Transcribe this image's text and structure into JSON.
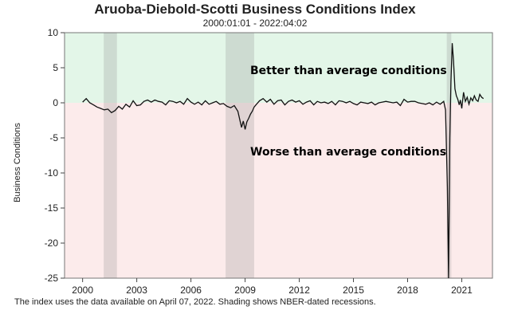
{
  "chart_data": {
    "type": "line",
    "title": "Aruoba-Diebold-Scotti Business Conditions Index",
    "subtitle": "2000:01:01 - 2022:04:02",
    "ylabel": "Business Conditions",
    "xlabel": "",
    "ylim": [
      -25,
      10
    ],
    "xlim": [
      1999.0,
      2022.7
    ],
    "y_ticks": [
      "10",
      "5",
      "0",
      "-5",
      "-10",
      "-15",
      "-20",
      "-25"
    ],
    "x_ticks": [
      "2000",
      "2003",
      "2006",
      "2009",
      "2012",
      "2015",
      "2018",
      "2021"
    ],
    "annotations": {
      "better": "Better than average conditions",
      "worse": "Worse than average conditions"
    },
    "note": "The index uses the data available on April 07, 2022. Shading shows NBER-dated recessions.",
    "recessions": [
      [
        2001.17,
        2001.9
      ],
      [
        2007.92,
        2009.5
      ],
      [
        2020.17,
        2020.42
      ]
    ],
    "colors": {
      "above_zero_fill": "#e3f6e8",
      "below_zero_fill": "#fcebeb",
      "recession_shade": "#8a8a8a",
      "line": "#111111"
    },
    "series": [
      {
        "values": [
          [
            2000.0,
            0.1
          ],
          [
            2000.2,
            0.6
          ],
          [
            2000.4,
            0.0
          ],
          [
            2000.6,
            -0.3
          ],
          [
            2000.8,
            -0.6
          ],
          [
            2001.0,
            -0.8
          ],
          [
            2001.2,
            -1.0
          ],
          [
            2001.4,
            -0.9
          ],
          [
            2001.6,
            -1.4
          ],
          [
            2001.8,
            -1.1
          ],
          [
            2002.0,
            -0.5
          ],
          [
            2002.2,
            -0.9
          ],
          [
            2002.4,
            -0.2
          ],
          [
            2002.6,
            -0.6
          ],
          [
            2002.8,
            0.3
          ],
          [
            2003.0,
            -0.4
          ],
          [
            2003.2,
            -0.3
          ],
          [
            2003.4,
            0.2
          ],
          [
            2003.6,
            0.4
          ],
          [
            2003.8,
            0.1
          ],
          [
            2004.0,
            0.4
          ],
          [
            2004.2,
            0.2
          ],
          [
            2004.4,
            0.1
          ],
          [
            2004.6,
            -0.3
          ],
          [
            2004.8,
            0.3
          ],
          [
            2005.0,
            0.2
          ],
          [
            2005.2,
            0.0
          ],
          [
            2005.4,
            0.2
          ],
          [
            2005.6,
            -0.2
          ],
          [
            2005.8,
            0.6
          ],
          [
            2006.0,
            0.1
          ],
          [
            2006.2,
            -0.2
          ],
          [
            2006.4,
            0.1
          ],
          [
            2006.6,
            -0.3
          ],
          [
            2006.8,
            0.3
          ],
          [
            2007.0,
            -0.2
          ],
          [
            2007.2,
            0.0
          ],
          [
            2007.4,
            0.2
          ],
          [
            2007.6,
            -0.2
          ],
          [
            2007.8,
            -0.1
          ],
          [
            2008.0,
            -0.5
          ],
          [
            2008.2,
            -0.7
          ],
          [
            2008.4,
            -0.4
          ],
          [
            2008.6,
            -1.2
          ],
          [
            2008.8,
            -3.5
          ],
          [
            2008.9,
            -2.6
          ],
          [
            2009.0,
            -3.8
          ],
          [
            2009.1,
            -2.7
          ],
          [
            2009.2,
            -2.2
          ],
          [
            2009.3,
            -1.6
          ],
          [
            2009.4,
            -1.2
          ],
          [
            2009.5,
            -0.6
          ],
          [
            2009.6,
            -0.3
          ],
          [
            2009.8,
            0.3
          ],
          [
            2010.0,
            0.6
          ],
          [
            2010.2,
            0.1
          ],
          [
            2010.4,
            0.5
          ],
          [
            2010.6,
            -0.2
          ],
          [
            2010.8,
            0.3
          ],
          [
            2011.0,
            0.4
          ],
          [
            2011.2,
            -0.3
          ],
          [
            2011.4,
            0.2
          ],
          [
            2011.6,
            0.4
          ],
          [
            2011.8,
            0.1
          ],
          [
            2012.0,
            0.3
          ],
          [
            2012.2,
            -0.2
          ],
          [
            2012.4,
            0.1
          ],
          [
            2012.6,
            0.3
          ],
          [
            2012.8,
            -0.3
          ],
          [
            2013.0,
            0.2
          ],
          [
            2013.2,
            0.0
          ],
          [
            2013.4,
            0.1
          ],
          [
            2013.6,
            -0.1
          ],
          [
            2013.8,
            0.2
          ],
          [
            2014.0,
            -0.3
          ],
          [
            2014.2,
            0.3
          ],
          [
            2014.4,
            0.2
          ],
          [
            2014.6,
            0.0
          ],
          [
            2014.8,
            0.2
          ],
          [
            2015.0,
            -0.1
          ],
          [
            2015.2,
            -0.3
          ],
          [
            2015.4,
            0.1
          ],
          [
            2015.6,
            0.0
          ],
          [
            2015.8,
            -0.1
          ],
          [
            2016.0,
            0.1
          ],
          [
            2016.2,
            -0.3
          ],
          [
            2016.4,
            0.0
          ],
          [
            2016.6,
            0.1
          ],
          [
            2016.8,
            0.2
          ],
          [
            2017.0,
            0.1
          ],
          [
            2017.2,
            0.0
          ],
          [
            2017.4,
            0.1
          ],
          [
            2017.6,
            -0.4
          ],
          [
            2017.8,
            0.5
          ],
          [
            2018.0,
            0.1
          ],
          [
            2018.2,
            0.2
          ],
          [
            2018.4,
            0.2
          ],
          [
            2018.6,
            0.0
          ],
          [
            2018.8,
            -0.1
          ],
          [
            2019.0,
            -0.2
          ],
          [
            2019.2,
            0.0
          ],
          [
            2019.4,
            -0.3
          ],
          [
            2019.6,
            0.1
          ],
          [
            2019.8,
            -0.2
          ],
          [
            2020.0,
            0.2
          ],
          [
            2020.1,
            -1.0
          ],
          [
            2020.2,
            -12.0
          ],
          [
            2020.27,
            -25.0
          ],
          [
            2020.34,
            -5.0
          ],
          [
            2020.4,
            3.0
          ],
          [
            2020.47,
            8.5
          ],
          [
            2020.54,
            6.0
          ],
          [
            2020.62,
            2.0
          ],
          [
            2020.7,
            1.0
          ],
          [
            2020.78,
            0.5
          ],
          [
            2020.86,
            -0.3
          ],
          [
            2020.92,
            0.4
          ],
          [
            2021.0,
            -0.8
          ],
          [
            2021.1,
            1.5
          ],
          [
            2021.2,
            0.2
          ],
          [
            2021.3,
            0.8
          ],
          [
            2021.4,
            -0.2
          ],
          [
            2021.5,
            0.7
          ],
          [
            2021.6,
            0.3
          ],
          [
            2021.7,
            1.0
          ],
          [
            2021.8,
            0.4
          ],
          [
            2021.9,
            0.2
          ],
          [
            2022.0,
            1.2
          ],
          [
            2022.1,
            0.8
          ],
          [
            2022.2,
            0.6
          ]
        ]
      }
    ]
  }
}
